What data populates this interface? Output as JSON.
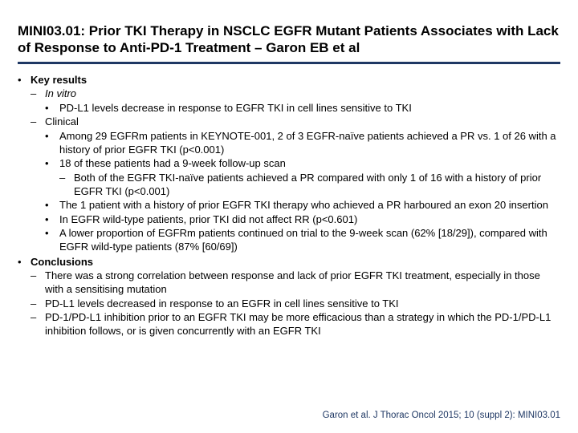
{
  "colors": {
    "text": "#000000",
    "rule": "#1f3864",
    "citation": "#1f3864",
    "background": "#ffffff"
  },
  "title": "MINI03.01: Prior TKI Therapy in NSCLC EGFR Mutant Patients Associates with Lack of Response to Anti-PD-1 Treatment – Garon EB et al",
  "sections": {
    "keyResults": {
      "heading": "Key results",
      "inVitro": {
        "heading": "In vitro",
        "b1": "PD-L1 levels decrease in response to EGFR TKI in cell lines sensitive to TKI"
      },
      "clinical": {
        "heading": "Clinical",
        "b1": "Among 29 EGFRm patients in KEYNOTE-001, 2 of 3 EGFR-naïve patients achieved a PR vs. 1 of 26 with a history of prior EGFR TKI (p<0.001)",
        "b2": "18 of these patients had a 9-week follow-up scan",
        "b2a": "Both of the EGFR TKI-naïve patients achieved a PR compared with only 1 of 16 with a history of prior EGFR TKI (p<0.001)",
        "b3": "The 1 patient with a history of prior EGFR TKI therapy who achieved a PR harboured an exon 20 insertion",
        "b4": "In EGFR wild-type patients, prior TKI did not affect RR (p<0.601)",
        "b5": "A lower proportion of EGFRm patients continued on trial to the 9-week scan (62% [18/29]), compared with EGFR wild-type patients (87% [60/69])"
      }
    },
    "conclusions": {
      "heading": "Conclusions",
      "c1": "There was a strong correlation between response and lack of prior EGFR TKI treatment, especially in those with a sensitising mutation",
      "c2": "PD-L1 levels decreased in response to an EGFR in cell lines sensitive to TKI",
      "c3": "PD-1/PD-L1 inhibition prior to an EGFR TKI may be more efficacious than a strategy in which the PD-1/PD-L1 inhibition follows, or is given concurrently with an EGFR TKI"
    }
  },
  "citation": "Garon et al. J Thorac Oncol 2015; 10 (suppl 2): MINI03.01"
}
